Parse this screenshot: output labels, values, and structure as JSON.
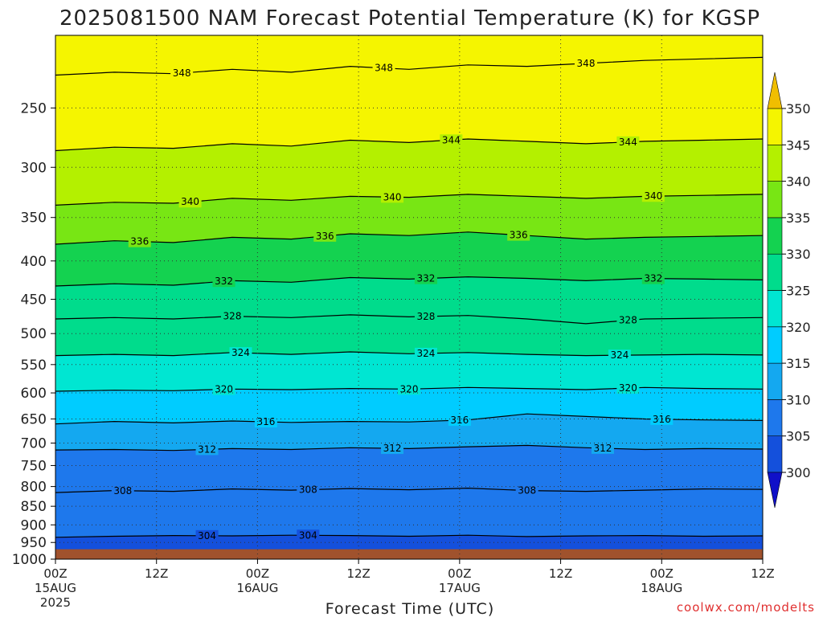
{
  "chart_data": {
    "type": "heatmap",
    "title": "2025081500 NAM Forecast Potential Temperature (K) for KGSP",
    "xlabel": "Forecast Time (UTC)",
    "ylabel": "",
    "credit": "coolwx.com/modelts",
    "x_ticks": [
      {
        "hour": 0,
        "label": "00Z",
        "sub": "15AUG",
        "sub2": "2025"
      },
      {
        "hour": 12,
        "label": "12Z",
        "sub": "",
        "sub2": ""
      },
      {
        "hour": 24,
        "label": "00Z",
        "sub": "16AUG",
        "sub2": ""
      },
      {
        "hour": 36,
        "label": "12Z",
        "sub": "",
        "sub2": ""
      },
      {
        "hour": 48,
        "label": "00Z",
        "sub": "17AUG",
        "sub2": ""
      },
      {
        "hour": 60,
        "label": "12Z",
        "sub": "",
        "sub2": ""
      },
      {
        "hour": 72,
        "label": "00Z",
        "sub": "18AUG",
        "sub2": ""
      },
      {
        "hour": 84,
        "label": "12Z",
        "sub": "",
        "sub2": ""
      }
    ],
    "xlim_hours": [
      0,
      84
    ],
    "y_ticks": [
      250,
      300,
      350,
      400,
      450,
      500,
      550,
      600,
      650,
      700,
      750,
      800,
      850,
      900,
      950,
      1000
    ],
    "ylim_hPa": [
      200,
      1000
    ],
    "y_scale": "log",
    "grid": "dotted",
    "colorbar": {
      "levels": [
        300,
        305,
        310,
        315,
        320,
        325,
        330,
        335,
        340,
        345,
        350
      ],
      "labels": [
        "300",
        "305",
        "310",
        "315",
        "320",
        "325",
        "330",
        "335",
        "340",
        "345",
        "350"
      ],
      "colors": [
        "#1010c8",
        "#1450dc",
        "#1e78ec",
        "#14a8f0",
        "#00ccff",
        "#00e6d2",
        "#00dc8c",
        "#14d250",
        "#78e614",
        "#b4f000",
        "#f5f500",
        "#f0be00"
      ]
    },
    "ground_color": "#a0522d",
    "ground_level_hPa": 970,
    "contours": [
      {
        "value": 304,
        "p": [
          935,
          932,
          930,
          931,
          929,
          930,
          932,
          929,
          933,
          931,
          930,
          932,
          931
        ],
        "labels": [
          {
            "hour": 18,
            "text": "304"
          },
          {
            "hour": 30,
            "text": "304"
          }
        ]
      },
      {
        "value": 308,
        "p": [
          815,
          810,
          812,
          806,
          809,
          805,
          808,
          804,
          810,
          812,
          809,
          806,
          807
        ],
        "labels": [
          {
            "hour": 8,
            "text": "308"
          },
          {
            "hour": 30,
            "text": "308"
          },
          {
            "hour": 56,
            "text": "308"
          }
        ]
      },
      {
        "value": 312,
        "p": [
          715,
          714,
          716,
          712,
          714,
          710,
          712,
          708,
          705,
          710,
          714,
          712,
          713
        ],
        "labels": [
          {
            "hour": 18,
            "text": "312"
          },
          {
            "hour": 40,
            "text": "312"
          },
          {
            "hour": 65,
            "text": "312"
          }
        ]
      },
      {
        "value": 316,
        "p": [
          660,
          655,
          658,
          654,
          657,
          655,
          656,
          652,
          640,
          645,
          650,
          652,
          653
        ],
        "labels": [
          {
            "hour": 25,
            "text": "316"
          },
          {
            "hour": 48,
            "text": "316"
          },
          {
            "hour": 72,
            "text": "316"
          }
        ]
      },
      {
        "value": 320,
        "p": [
          597,
          595,
          596,
          593,
          594,
          592,
          593,
          590,
          592,
          594,
          590,
          592,
          593
        ],
        "labels": [
          {
            "hour": 20,
            "text": "320"
          },
          {
            "hour": 42,
            "text": "320"
          },
          {
            "hour": 68,
            "text": "320"
          }
        ]
      },
      {
        "value": 324,
        "p": [
          535,
          533,
          535,
          530,
          533,
          529,
          532,
          530,
          533,
          535,
          534,
          533,
          534
        ],
        "labels": [
          {
            "hour": 22,
            "text": "324"
          },
          {
            "hour": 44,
            "text": "324"
          },
          {
            "hour": 67,
            "text": "324"
          }
        ]
      },
      {
        "value": 328,
        "p": [
          478,
          476,
          478,
          474,
          476,
          472,
          475,
          473,
          478,
          485,
          478,
          477,
          476
        ],
        "labels": [
          {
            "hour": 21,
            "text": "328"
          },
          {
            "hour": 44,
            "text": "328"
          },
          {
            "hour": 68,
            "text": "328"
          }
        ]
      },
      {
        "value": 332,
        "p": [
          432,
          429,
          431,
          425,
          427,
          421,
          423,
          420,
          422,
          425,
          422,
          423,
          424
        ],
        "labels": [
          {
            "hour": 20,
            "text": "332"
          },
          {
            "hour": 44,
            "text": "332"
          },
          {
            "hour": 71,
            "text": "332"
          }
        ]
      },
      {
        "value": 336,
        "p": [
          380,
          376,
          378,
          372,
          374,
          368,
          370,
          366,
          370,
          374,
          372,
          371,
          370
        ],
        "labels": [
          {
            "hour": 10,
            "text": "336"
          },
          {
            "hour": 32,
            "text": "336"
          },
          {
            "hour": 55,
            "text": "336"
          }
        ]
      },
      {
        "value": 340,
        "p": [
          337,
          334,
          335,
          330,
          332,
          328,
          329,
          326,
          328,
          330,
          328,
          327,
          326
        ],
        "labels": [
          {
            "hour": 16,
            "text": "340"
          },
          {
            "hour": 40,
            "text": "340"
          },
          {
            "hour": 71,
            "text": "340"
          }
        ]
      },
      {
        "value": 344,
        "p": [
          285,
          282,
          283,
          279,
          281,
          276,
          278,
          275,
          277,
          279,
          277,
          276,
          275
        ],
        "labels": [
          {
            "hour": 47,
            "text": "344"
          },
          {
            "hour": 68,
            "text": "344"
          }
        ]
      },
      {
        "value": 348,
        "p": [
          226,
          224,
          225,
          222,
          224,
          220,
          222,
          219,
          220,
          218,
          216,
          215,
          214
        ],
        "labels": [
          {
            "hour": 15,
            "text": "348"
          },
          {
            "hour": 39,
            "text": "348"
          },
          {
            "hour": 63,
            "text": "348"
          }
        ]
      }
    ]
  }
}
